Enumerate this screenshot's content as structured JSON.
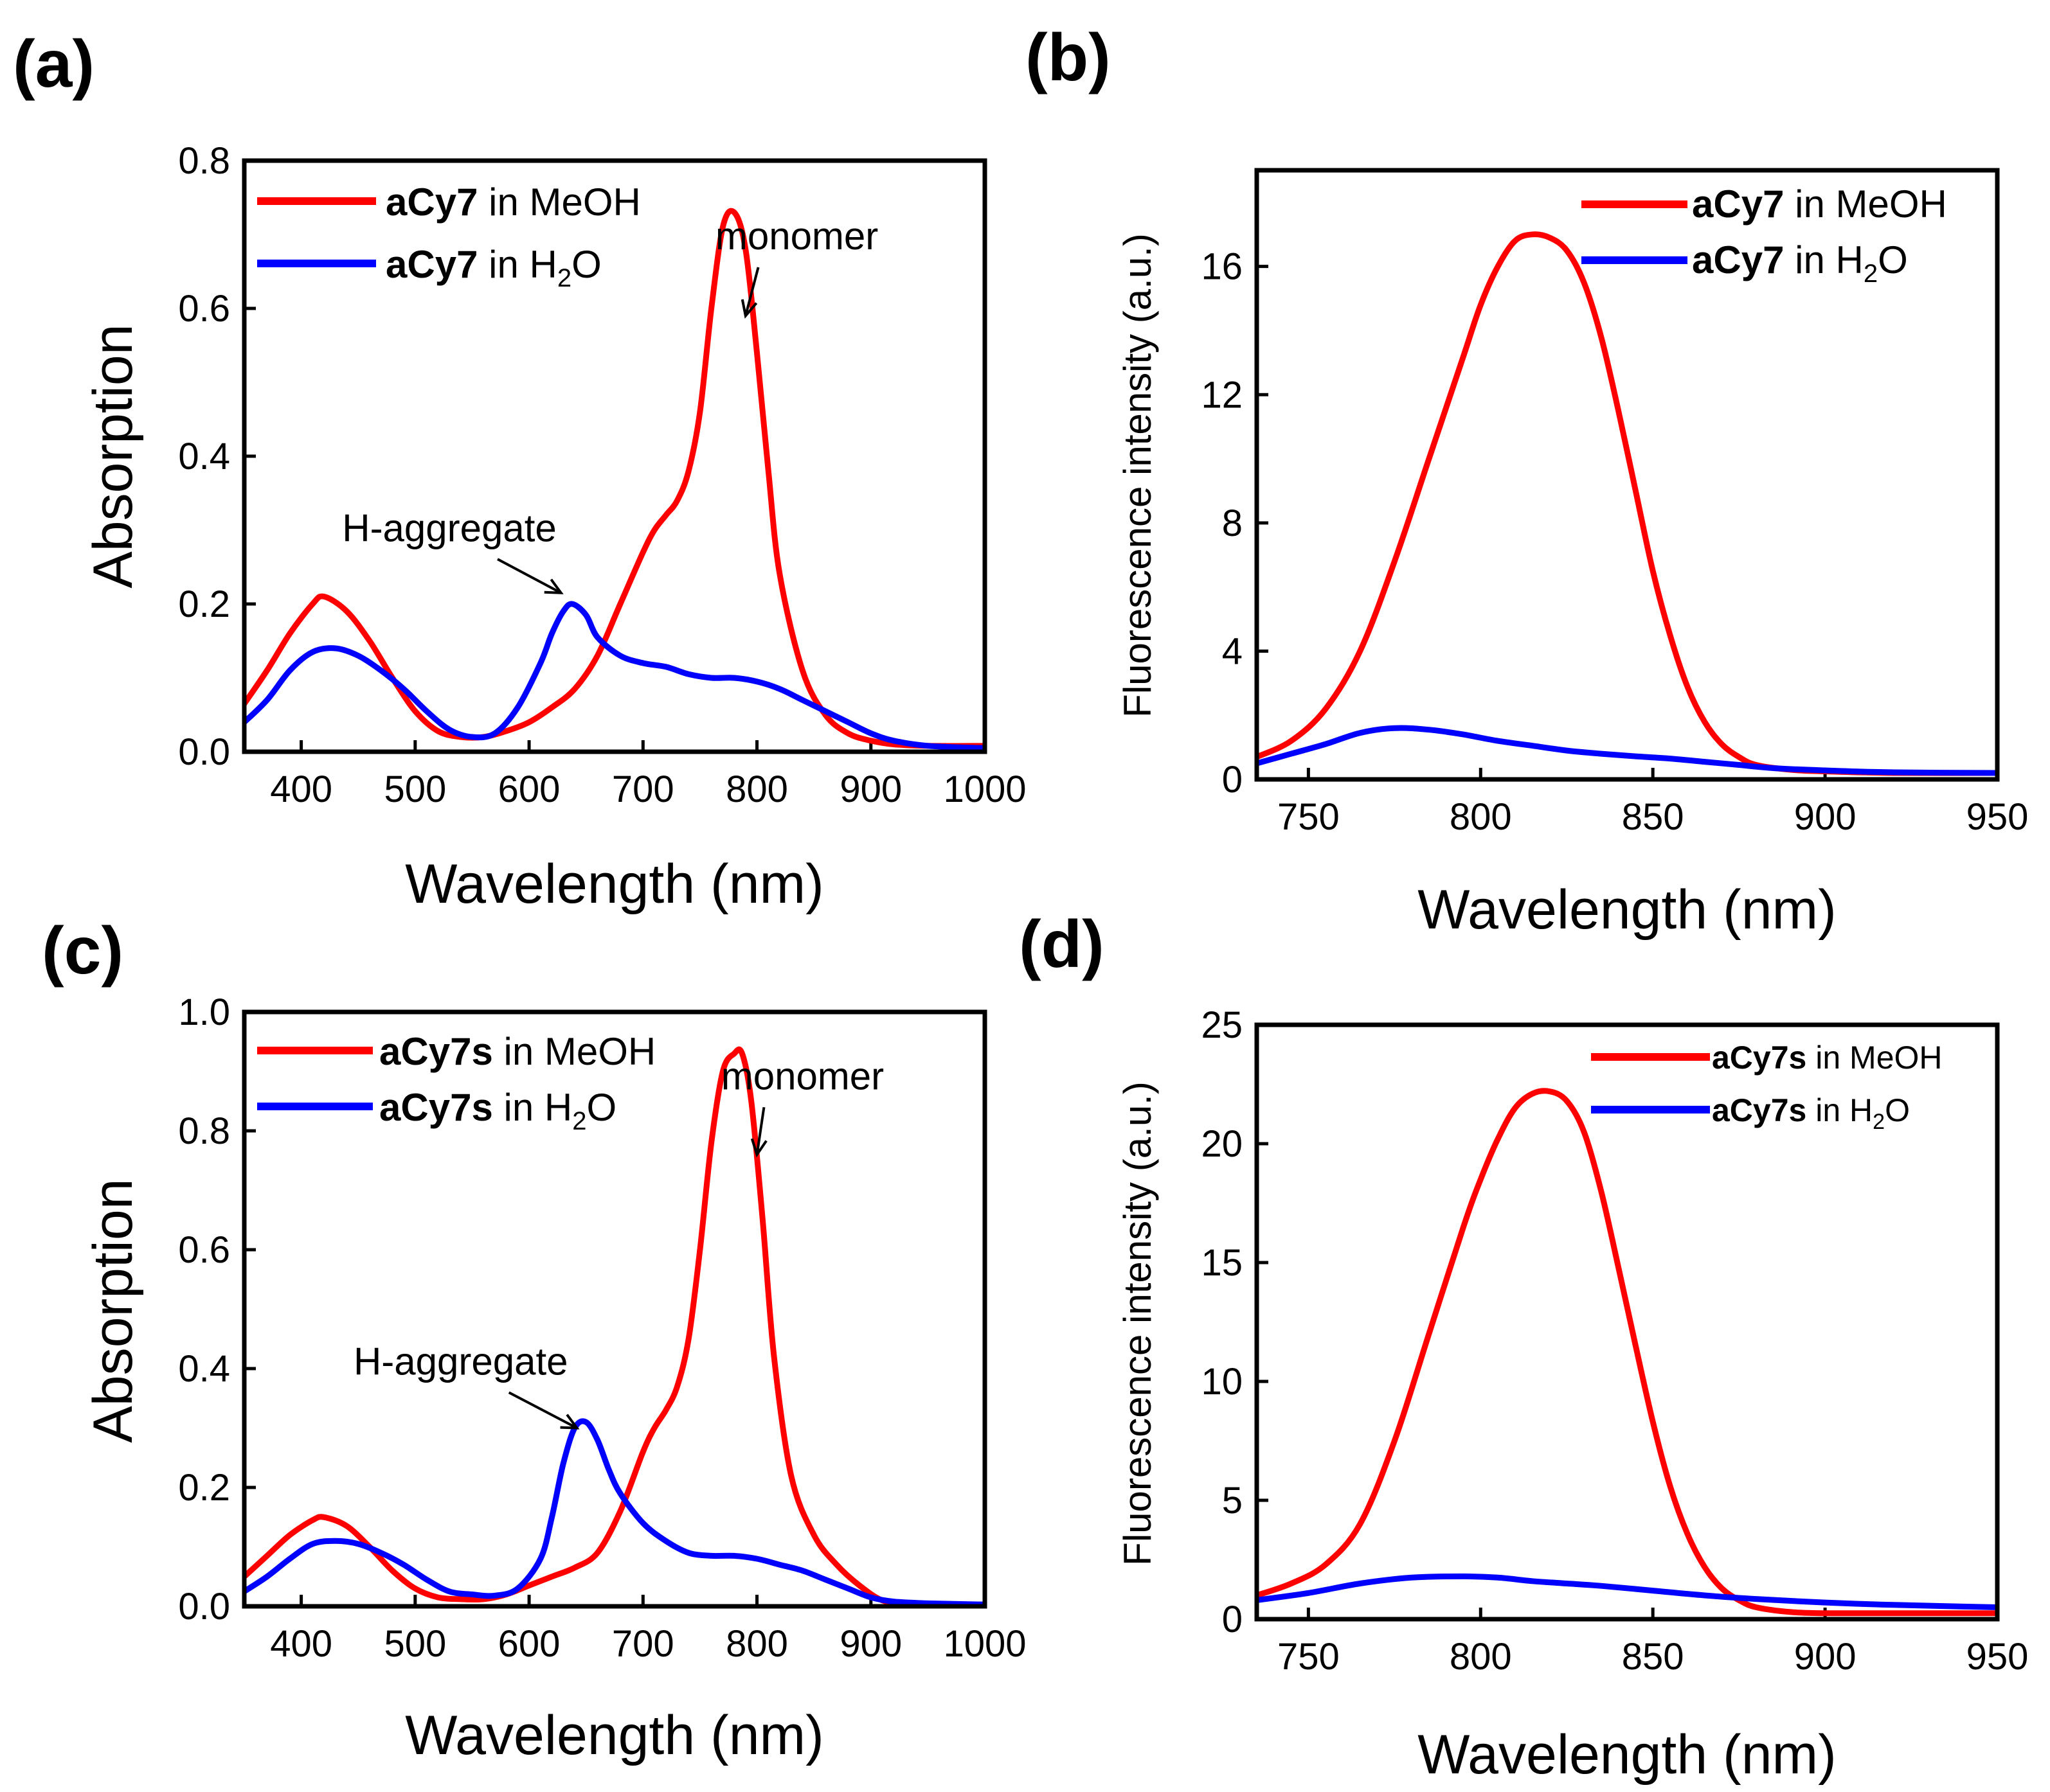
{
  "figure": {
    "colors": {
      "red": "#ff0000",
      "blue": "#0000ff"
    }
  },
  "chart_data": [
    {
      "id": "a",
      "panel_label": "(a)",
      "type": "line",
      "xlabel": "Wavelength (nm)",
      "ylabel": "Absorption",
      "xlim": [
        350,
        1000
      ],
      "ylim": [
        0,
        0.8
      ],
      "xticks": [
        400,
        500,
        600,
        700,
        800,
        900,
        1000
      ],
      "xtick_labels": [
        "400",
        "500",
        "600",
        "700",
        "800",
        "900",
        "1000"
      ],
      "yticks": [
        0,
        0.2,
        0.4,
        0.6,
        0.8
      ],
      "ytick_labels": [
        "0.0",
        "0.2",
        "0.4",
        "0.6",
        "0.8"
      ],
      "legend": [
        {
          "bold": "aCy7",
          "rest": " in MeOH",
          "color": "#ff0000"
        },
        {
          "bold": "aCy7",
          "rest": " in H",
          "sub": "2",
          "tail": "O",
          "color": "#0000ff"
        }
      ],
      "annotations": [
        {
          "text": "monomer",
          "x": 835,
          "y": 0.68,
          "arrow_to": [
            790,
            0.59
          ]
        },
        {
          "text": "H-aggregate",
          "x": 530,
          "y": 0.285,
          "arrow_to": [
            628,
            0.215
          ]
        }
      ],
      "series": [
        {
          "name": "aCy7 in MeOH",
          "color": "#ff0000",
          "x": [
            350,
            370,
            390,
            410,
            420,
            440,
            460,
            480,
            500,
            520,
            540,
            560,
            580,
            600,
            620,
            640,
            660,
            680,
            700,
            710,
            720,
            730,
            740,
            750,
            760,
            770,
            780,
            790,
            800,
            810,
            820,
            840,
            860,
            880,
            900,
            920,
            950,
            1000
          ],
          "y": [
            0.065,
            0.11,
            0.16,
            0.2,
            0.21,
            0.19,
            0.15,
            0.1,
            0.055,
            0.028,
            0.02,
            0.02,
            0.028,
            0.04,
            0.06,
            0.085,
            0.13,
            0.2,
            0.27,
            0.3,
            0.32,
            0.34,
            0.38,
            0.46,
            0.6,
            0.71,
            0.73,
            0.68,
            0.54,
            0.38,
            0.24,
            0.11,
            0.05,
            0.025,
            0.015,
            0.01,
            0.008,
            0.008
          ]
        },
        {
          "name": "aCy7 in H2O",
          "color": "#0000ff",
          "x": [
            350,
            370,
            390,
            410,
            430,
            450,
            470,
            490,
            510,
            530,
            550,
            570,
            590,
            610,
            620,
            630,
            638,
            650,
            660,
            680,
            700,
            720,
            740,
            760,
            780,
            800,
            820,
            840,
            860,
            880,
            900,
            920,
            950,
            1000
          ],
          "y": [
            0.04,
            0.07,
            0.11,
            0.135,
            0.14,
            0.13,
            0.11,
            0.085,
            0.055,
            0.03,
            0.02,
            0.025,
            0.06,
            0.12,
            0.16,
            0.19,
            0.2,
            0.185,
            0.155,
            0.13,
            0.12,
            0.115,
            0.105,
            0.1,
            0.1,
            0.095,
            0.085,
            0.07,
            0.055,
            0.04,
            0.025,
            0.015,
            0.008,
            0.005
          ]
        }
      ]
    },
    {
      "id": "b",
      "panel_label": "(b)",
      "type": "line",
      "xlabel": "Wavelength (nm)",
      "ylabel": "Fluorescence intensity (a.u.)",
      "xlim": [
        735,
        950
      ],
      "ylim": [
        0,
        19
      ],
      "xticks": [
        750,
        800,
        850,
        900,
        950
      ],
      "xtick_labels": [
        "750",
        "800",
        "850",
        "900",
        "950"
      ],
      "yticks": [
        0,
        4,
        8,
        12,
        16
      ],
      "ytick_labels": [
        "0",
        "4",
        "8",
        "12",
        "16"
      ],
      "legend": [
        {
          "bold": "aCy7",
          "rest": " in MeOH",
          "color": "#ff0000"
        },
        {
          "bold": "aCy7",
          "rest": " in H",
          "sub": "2",
          "tail": "O",
          "color": "#0000ff"
        }
      ],
      "series": [
        {
          "name": "aCy7 in MeOH",
          "color": "#ff0000",
          "x": [
            735,
            745,
            755,
            765,
            775,
            785,
            795,
            800,
            805,
            810,
            815,
            820,
            825,
            830,
            835,
            840,
            845,
            850,
            855,
            860,
            865,
            870,
            875,
            880,
            890,
            900,
            920,
            950
          ],
          "y": [
            0.7,
            1.2,
            2.2,
            4.0,
            6.8,
            10.0,
            13.2,
            14.8,
            16.0,
            16.8,
            17.0,
            16.9,
            16.5,
            15.5,
            13.8,
            11.5,
            9.0,
            6.5,
            4.5,
            2.9,
            1.8,
            1.1,
            0.7,
            0.45,
            0.3,
            0.25,
            0.2,
            0.2
          ]
        },
        {
          "name": "aCy7 in H2O",
          "color": "#0000ff",
          "x": [
            735,
            745,
            755,
            765,
            775,
            785,
            795,
            805,
            815,
            825,
            835,
            845,
            855,
            865,
            875,
            885,
            900,
            920,
            950
          ],
          "y": [
            0.5,
            0.8,
            1.1,
            1.45,
            1.6,
            1.55,
            1.4,
            1.2,
            1.05,
            0.9,
            0.8,
            0.72,
            0.65,
            0.55,
            0.45,
            0.35,
            0.28,
            0.22,
            0.2
          ]
        }
      ]
    },
    {
      "id": "c",
      "panel_label": "(c)",
      "type": "line",
      "xlabel": "Wavelength (nm)",
      "ylabel": "Absorption",
      "xlim": [
        350,
        1000
      ],
      "ylim": [
        0,
        1.0
      ],
      "xticks": [
        400,
        500,
        600,
        700,
        800,
        900,
        1000
      ],
      "xtick_labels": [
        "400",
        "500",
        "600",
        "700",
        "800",
        "900",
        "1000"
      ],
      "yticks": [
        0,
        0.2,
        0.4,
        0.6,
        0.8,
        1.0
      ],
      "ytick_labels": [
        "0.0",
        "0.2",
        "0.4",
        "0.6",
        "0.8",
        "1.0"
      ],
      "legend": [
        {
          "bold": "aCy7s",
          "rest": " in MeOH",
          "color": "#ff0000"
        },
        {
          "bold": "aCy7s",
          "rest": " in H",
          "sub": "2",
          "tail": "O",
          "color": "#0000ff"
        }
      ],
      "annotations": [
        {
          "text": "monomer",
          "x": 840,
          "y": 0.87,
          "arrow_to": [
            800,
            0.76
          ]
        },
        {
          "text": "H-aggregate",
          "x": 540,
          "y": 0.39,
          "arrow_to": [
            642,
            0.3
          ]
        }
      ],
      "series": [
        {
          "name": "aCy7s in MeOH",
          "color": "#ff0000",
          "x": [
            350,
            370,
            390,
            410,
            420,
            440,
            460,
            480,
            500,
            520,
            540,
            560,
            580,
            600,
            620,
            640,
            660,
            680,
            700,
            710,
            720,
            730,
            740,
            750,
            760,
            770,
            780,
            787,
            795,
            805,
            815,
            830,
            850,
            870,
            890,
            910,
            930,
            960,
            1000
          ],
          "y": [
            0.05,
            0.085,
            0.12,
            0.145,
            0.15,
            0.135,
            0.1,
            0.06,
            0.03,
            0.015,
            0.012,
            0.012,
            0.02,
            0.035,
            0.05,
            0.065,
            0.09,
            0.16,
            0.26,
            0.3,
            0.33,
            0.37,
            0.45,
            0.6,
            0.78,
            0.9,
            0.93,
            0.93,
            0.85,
            0.65,
            0.42,
            0.22,
            0.12,
            0.07,
            0.035,
            0.01,
            0.005,
            0.003,
            0.003
          ]
        },
        {
          "name": "aCy7s in H2O",
          "color": "#0000ff",
          "x": [
            350,
            370,
            390,
            410,
            430,
            450,
            470,
            490,
            510,
            530,
            550,
            570,
            590,
            610,
            620,
            630,
            640,
            650,
            660,
            670,
            680,
            700,
            720,
            740,
            760,
            780,
            800,
            820,
            840,
            860,
            880,
            900,
            920,
            950,
            1000
          ],
          "y": [
            0.025,
            0.05,
            0.08,
            0.105,
            0.11,
            0.105,
            0.09,
            0.07,
            0.045,
            0.025,
            0.02,
            0.018,
            0.03,
            0.08,
            0.15,
            0.24,
            0.3,
            0.31,
            0.28,
            0.23,
            0.19,
            0.14,
            0.11,
            0.09,
            0.085,
            0.085,
            0.08,
            0.07,
            0.06,
            0.045,
            0.03,
            0.015,
            0.008,
            0.005,
            0.003
          ]
        }
      ]
    },
    {
      "id": "d",
      "panel_label": "(d)",
      "type": "line",
      "xlabel": "Wavelength (nm)",
      "ylabel": "Fluorescence intensity (a.u.)",
      "xlim": [
        735,
        950
      ],
      "ylim": [
        0,
        25
      ],
      "xticks": [
        750,
        800,
        850,
        900,
        950
      ],
      "xtick_labels": [
        "750",
        "800",
        "850",
        "900",
        "950"
      ],
      "yticks": [
        0,
        5,
        10,
        15,
        20,
        25
      ],
      "ytick_labels": [
        "0",
        "5",
        "10",
        "15",
        "20",
        "25"
      ],
      "legend": [
        {
          "bold": "aCy7s",
          "rest": " in MeOH",
          "color": "#ff0000"
        },
        {
          "bold": "aCy7s",
          "rest": " in H",
          "sub": "2",
          "tail": "O",
          "color": "#0000ff"
        }
      ],
      "series": [
        {
          "name": "aCy7s in MeOH",
          "color": "#ff0000",
          "x": [
            735,
            745,
            755,
            765,
            775,
            785,
            795,
            800,
            805,
            810,
            815,
            820,
            825,
            830,
            835,
            840,
            845,
            850,
            855,
            860,
            865,
            870,
            875,
            880,
            890,
            900,
            920,
            950
          ],
          "y": [
            1.0,
            1.5,
            2.3,
            4.0,
            7.5,
            12.0,
            16.5,
            18.5,
            20.2,
            21.5,
            22.1,
            22.2,
            21.8,
            20.5,
            18.0,
            14.8,
            11.5,
            8.3,
            5.6,
            3.6,
            2.2,
            1.3,
            0.8,
            0.5,
            0.3,
            0.25,
            0.25,
            0.25
          ]
        },
        {
          "name": "aCy7s in H2O",
          "color": "#0000ff",
          "x": [
            735,
            750,
            765,
            780,
            795,
            805,
            815,
            825,
            835,
            850,
            865,
            880,
            900,
            920,
            950
          ],
          "y": [
            0.8,
            1.1,
            1.5,
            1.75,
            1.8,
            1.75,
            1.6,
            1.5,
            1.4,
            1.2,
            1.0,
            0.85,
            0.7,
            0.6,
            0.5
          ]
        }
      ]
    }
  ]
}
